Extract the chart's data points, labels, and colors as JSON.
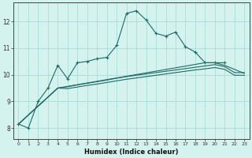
{
  "xlabel": "Humidex (Indice chaleur)",
  "background_color": "#d4f2ee",
  "grid_color": "#aaddd8",
  "line_color": "#1e6b65",
  "ylim": [
    7.6,
    12.7
  ],
  "yticks": [
    8,
    9,
    10,
    11,
    12
  ],
  "xlim": [
    -0.5,
    23.5
  ],
  "xticks": [
    0,
    1,
    2,
    3,
    4,
    5,
    6,
    7,
    8,
    9,
    10,
    11,
    12,
    13,
    14,
    15,
    16,
    17,
    18,
    19,
    20,
    21,
    22,
    23
  ],
  "s1_x": [
    0,
    1,
    2,
    3,
    4,
    5,
    6,
    7,
    8,
    9,
    10,
    11,
    12,
    13,
    14,
    15,
    16,
    17,
    18,
    19,
    20,
    21
  ],
  "s1_y": [
    8.15,
    8.0,
    9.0,
    9.5,
    10.35,
    9.85,
    10.45,
    10.5,
    10.6,
    10.65,
    11.1,
    12.3,
    12.4,
    12.05,
    11.55,
    11.45,
    11.6,
    11.05,
    10.85,
    10.45,
    10.45,
    10.45
  ],
  "s2_x": [
    0,
    4,
    19,
    20,
    21,
    22,
    23
  ],
  "s2_y": [
    8.15,
    9.5,
    10.45,
    10.45,
    10.35,
    10.2,
    10.05
  ],
  "s3_x": [
    0,
    4,
    5,
    6,
    7,
    8,
    9,
    10,
    11,
    12,
    13,
    14,
    15,
    16,
    17,
    18,
    19,
    20,
    21,
    22,
    23
  ],
  "s3_y": [
    8.15,
    9.5,
    9.55,
    9.62,
    9.68,
    9.74,
    9.8,
    9.87,
    9.93,
    9.98,
    10.03,
    10.08,
    10.13,
    10.18,
    10.23,
    10.28,
    10.33,
    10.38,
    10.3,
    10.08,
    10.08
  ],
  "s4_x": [
    0,
    4,
    5,
    6,
    7,
    8,
    9,
    10,
    11,
    12,
    13,
    14,
    15,
    16,
    17,
    18,
    19,
    20,
    21,
    22,
    23
  ],
  "s4_y": [
    8.15,
    9.5,
    9.48,
    9.54,
    9.6,
    9.65,
    9.71,
    9.77,
    9.83,
    9.88,
    9.93,
    9.98,
    10.03,
    10.08,
    10.13,
    10.18,
    10.22,
    10.27,
    10.2,
    9.98,
    9.98
  ]
}
